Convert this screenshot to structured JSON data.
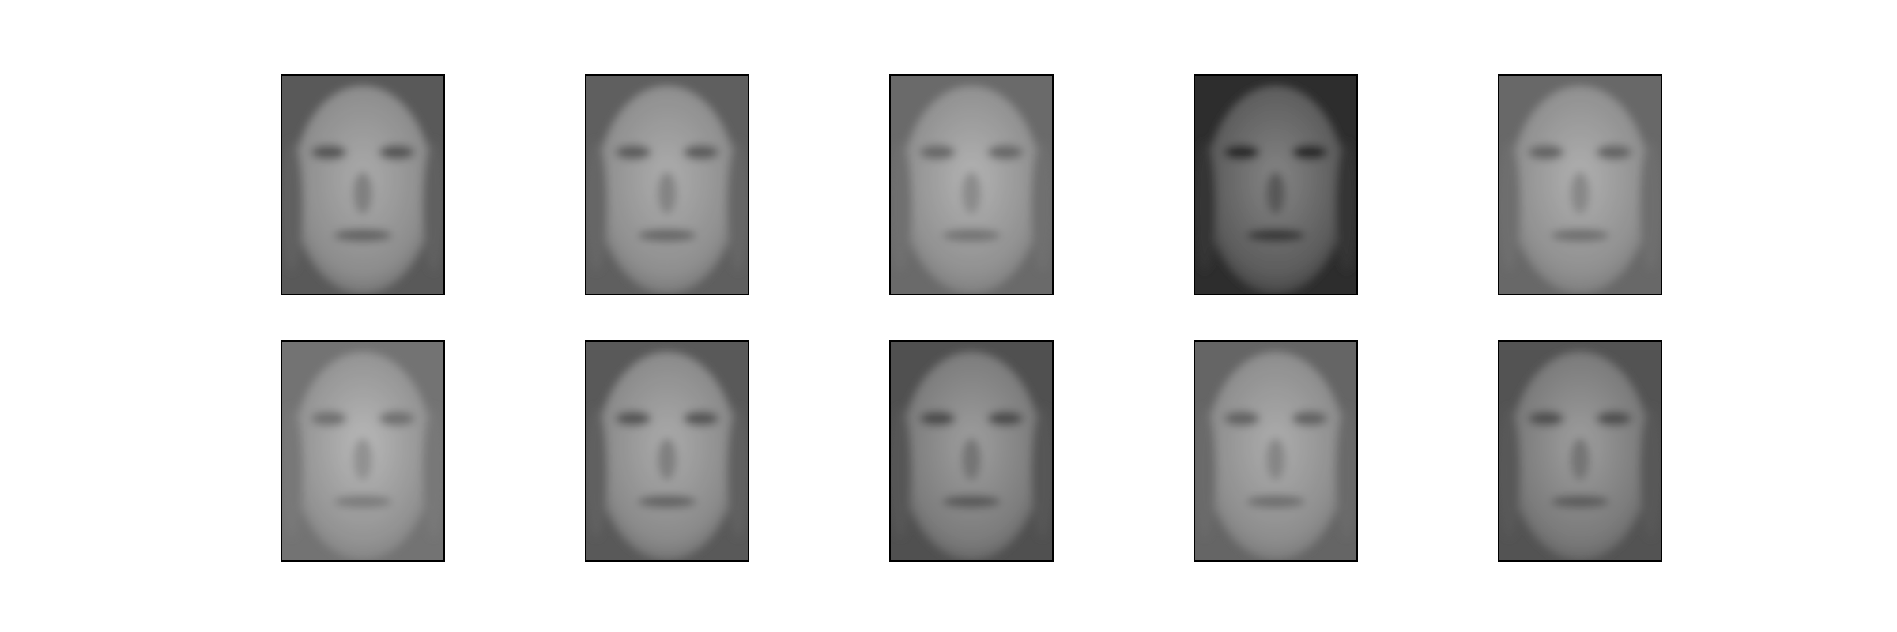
{
  "figure": {
    "rows": 2,
    "cols": 5,
    "background_color": "#ffffff",
    "frame_color": "#000000",
    "images": [
      {
        "subject": "grayscale-face",
        "tone": "#8c8c8c",
        "brightness": 0.55,
        "contrast": 0.6
      },
      {
        "subject": "grayscale-face",
        "tone": "#8e8e8e",
        "brightness": 0.56,
        "contrast": 0.55
      },
      {
        "subject": "grayscale-face",
        "tone": "#909090",
        "brightness": 0.58,
        "contrast": 0.45
      },
      {
        "subject": "grayscale-face",
        "tone": "#5c5c5c",
        "brightness": 0.4,
        "contrast": 0.7
      },
      {
        "subject": "grayscale-face",
        "tone": "#8f8f8f",
        "brightness": 0.57,
        "contrast": 0.45
      },
      {
        "subject": "grayscale-face",
        "tone": "#939393",
        "brightness": 0.6,
        "contrast": 0.4
      },
      {
        "subject": "grayscale-face",
        "tone": "#8a8a8a",
        "brightness": 0.55,
        "contrast": 0.6
      },
      {
        "subject": "grayscale-face",
        "tone": "#7c7c7c",
        "brightness": 0.5,
        "contrast": 0.55
      },
      {
        "subject": "grayscale-face",
        "tone": "#8d8d8d",
        "brightness": 0.56,
        "contrast": 0.45
      },
      {
        "subject": "grayscale-face",
        "tone": "#7a7a7a",
        "brightness": 0.5,
        "contrast": 0.5
      }
    ]
  }
}
